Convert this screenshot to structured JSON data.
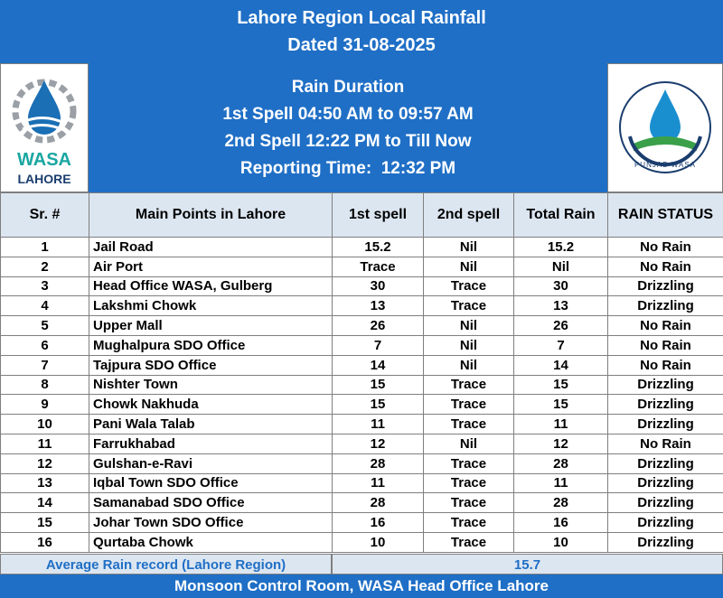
{
  "header": {
    "title": "Lahore Region Local Rainfall",
    "date": "Dated 31-08-2025"
  },
  "info": {
    "heading": "Rain Duration",
    "lines": [
      "1st Spell 04:50 AM to 09:57 AM",
      "2nd Spell 12:22 PM to Till Now",
      "Reporting Time:  12:32 PM"
    ]
  },
  "logos": {
    "left": [
      "WASA",
      "LAHORE"
    ],
    "right": "PUNJAB WASA"
  },
  "table": {
    "columns": [
      "Sr. #",
      "Main Points in Lahore",
      "1st spell",
      "2nd spell",
      "Total Rain",
      "RAIN STATUS"
    ],
    "rows": [
      [
        1,
        "Jail Road",
        15.2,
        "Nil",
        15.2,
        "No Rain"
      ],
      [
        2,
        "Air Port",
        "Trace",
        "Nil",
        "Nil",
        "No Rain"
      ],
      [
        3,
        "Head Office WASA, Gulberg",
        30,
        "Trace",
        30,
        "Drizzling"
      ],
      [
        4,
        "Lakshmi Chowk",
        13,
        "Trace",
        13,
        "Drizzling"
      ],
      [
        5,
        "Upper Mall",
        26,
        "Nil",
        26,
        "No Rain"
      ],
      [
        6,
        "Mughalpura SDO Office",
        7,
        "Nil",
        7,
        "No Rain"
      ],
      [
        7,
        "Tajpura SDO Office",
        14,
        "Nil",
        14,
        "No Rain"
      ],
      [
        8,
        "Nishter Town",
        15,
        "Trace",
        15,
        "Drizzling"
      ],
      [
        9,
        "Chowk Nakhuda",
        15,
        "Trace",
        15,
        "Drizzling"
      ],
      [
        10,
        "Pani Wala Talab",
        11,
        "Trace",
        11,
        "Drizzling"
      ],
      [
        11,
        "Farrukhabad",
        12,
        "Nil",
        12,
        "No Rain"
      ],
      [
        12,
        "Gulshan-e-Ravi",
        28,
        "Trace",
        28,
        "Drizzling"
      ],
      [
        13,
        "Iqbal Town SDO Office",
        11,
        "Trace",
        11,
        "Drizzling"
      ],
      [
        14,
        "Samanabad SDO Office",
        28,
        "Trace",
        28,
        "Drizzling"
      ],
      [
        15,
        "Johar Town SDO Office",
        16,
        "Trace",
        16,
        "Drizzling"
      ],
      [
        16,
        "Qurtaba Chowk",
        10,
        "Trace",
        10,
        "Drizzling"
      ]
    ]
  },
  "average": {
    "label": "Average Rain record (Lahore Region)",
    "value": 15.7
  },
  "footer": "Monsoon Control Room, WASA Head Office Lahore"
}
